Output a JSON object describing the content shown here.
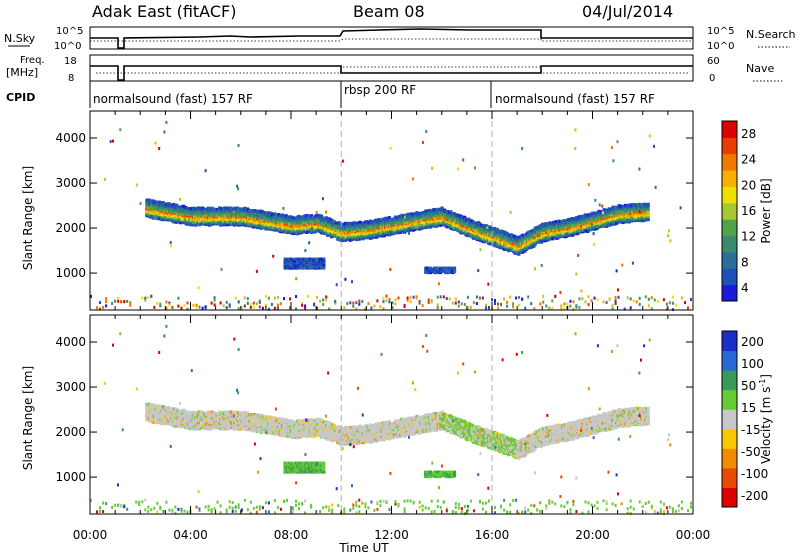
{
  "header": {
    "title": "Adak East (fitACF)",
    "beam": "Beam 08",
    "date": "04/Jul/2014"
  },
  "panels": {
    "nsky_label": "N.Sky",
    "nsky_ticks": [
      "10^5",
      "10^0"
    ],
    "nsearch_label": "N.Search",
    "nsearch_ticks": [
      "10^5",
      "10^0"
    ],
    "freq_label": "Freq.",
    "freq_unit": "[MHz]",
    "freq_ticks": [
      "18",
      "8"
    ],
    "nave_label": "Nave",
    "nave_ticks": [
      "60",
      "0"
    ],
    "cpid_label": "CPID",
    "cpid_segments": [
      {
        "label": "normalsound (fast) 157 RF",
        "start_h": 0,
        "end_h": 10
      },
      {
        "label": "rbsp 200 RF",
        "start_h": 10,
        "end_h": 16
      },
      {
        "label": "normalsound (fast) 157 RF",
        "start_h": 16,
        "end_h": 24
      }
    ]
  },
  "power_colorbar": {
    "label": "Power [dB]",
    "ticks": [
      "28",
      "24",
      "20",
      "16",
      "12",
      "8",
      "4"
    ],
    "colors": [
      "#1a1adc",
      "#1f4fb8",
      "#2c6e9a",
      "#3a8a72",
      "#4fa34a",
      "#a8c832",
      "#f0e000",
      "#f8b000",
      "#f07a00",
      "#e83c00",
      "#dd0000"
    ]
  },
  "velocity_colorbar": {
    "label": "Velocity [m s^-1]",
    "ticks": [
      "200",
      "100",
      "50",
      "15",
      "-15",
      "-50",
      "-100",
      "-200"
    ],
    "colors": [
      "#1a2fc8",
      "#2a6ad8",
      "#3a9a5a",
      "#66cc33",
      "#c8c8c8",
      "#f8c800",
      "#f08c00",
      "#e84a00",
      "#dd0000"
    ]
  },
  "chart_data": [
    {
      "type": "heatmap",
      "name": "Power",
      "xlabel": "",
      "ylabel": "Slant Range [km]",
      "xlim": [
        0,
        24
      ],
      "ylim": [
        180,
        4600
      ],
      "x_ticks": [
        0,
        4,
        8,
        12,
        16,
        20,
        24
      ],
      "y_ticks": [
        1000,
        2000,
        3000,
        4000
      ],
      "y_tick_labels": [
        "1000",
        "2000",
        "3000",
        "4000"
      ],
      "echo_band_center_km": [
        [
          2,
          2450
        ],
        [
          3,
          2350
        ],
        [
          4,
          2250
        ],
        [
          5,
          2250
        ],
        [
          6,
          2250
        ],
        [
          7,
          2150
        ],
        [
          8,
          2050
        ],
        [
          9,
          2100
        ],
        [
          10,
          1900
        ],
        [
          11,
          1950
        ],
        [
          12,
          2050
        ],
        [
          13,
          2150
        ],
        [
          14,
          2250
        ],
        [
          15,
          2000
        ],
        [
          16,
          1800
        ],
        [
          17,
          1600
        ],
        [
          18,
          1900
        ],
        [
          19,
          2000
        ],
        [
          20,
          2150
        ],
        [
          21,
          2300
        ],
        [
          22,
          2350
        ]
      ],
      "echo_patch": [
        {
          "x": [
            7.7,
            9.3
          ],
          "y_km": [
            1100,
            1300
          ]
        },
        {
          "x": [
            13.3,
            14.5
          ],
          "y_km": [
            1000,
            1100
          ]
        }
      ]
    },
    {
      "type": "heatmap",
      "name": "Velocity",
      "xlabel": "Time UT",
      "ylabel": "Slant Range [km]",
      "xlim": [
        0,
        24
      ],
      "ylim": [
        180,
        4600
      ],
      "x_ticks": [
        0,
        4,
        8,
        12,
        16,
        20,
        24
      ],
      "x_tick_labels": [
        "00:00",
        "04:00",
        "08:00",
        "12:00",
        "16:00",
        "20:00",
        "00:00"
      ],
      "y_ticks": [
        1000,
        2000,
        3000,
        4000
      ],
      "y_tick_labels": [
        "1000",
        "2000",
        "3000",
        "4000"
      ],
      "echo_band_center_km": [
        [
          2,
          2450
        ],
        [
          3,
          2350
        ],
        [
          4,
          2250
        ],
        [
          5,
          2250
        ],
        [
          6,
          2250
        ],
        [
          7,
          2150
        ],
        [
          8,
          2050
        ],
        [
          9,
          2100
        ],
        [
          10,
          1900
        ],
        [
          11,
          1950
        ],
        [
          12,
          2050
        ],
        [
          13,
          2150
        ],
        [
          14,
          2250
        ],
        [
          15,
          2000
        ],
        [
          16,
          1800
        ],
        [
          17,
          1600
        ],
        [
          18,
          1900
        ],
        [
          19,
          2000
        ],
        [
          20,
          2150
        ],
        [
          21,
          2300
        ],
        [
          22,
          2350
        ]
      ],
      "echo_patch": [
        {
          "x": [
            7.7,
            9.3
          ],
          "y_km": [
            1100,
            1300
          ]
        },
        {
          "x": [
            13.3,
            14.5
          ],
          "y_km": [
            1000,
            1100
          ]
        }
      ]
    }
  ]
}
